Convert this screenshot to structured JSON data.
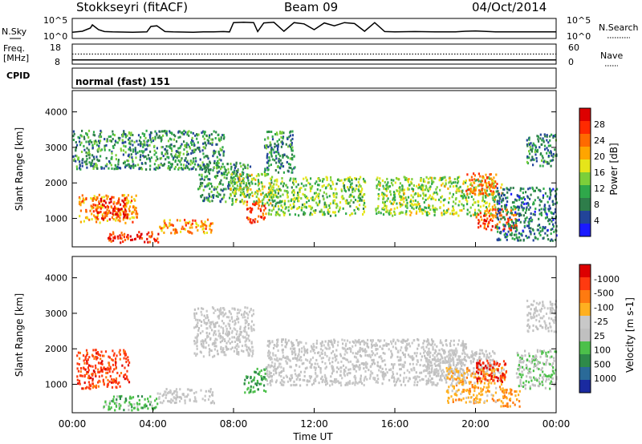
{
  "header": {
    "station": "Stokkseyri (fitACF)",
    "beam": "Beam 09",
    "date": "04/Oct/2014"
  },
  "noise_panel": {
    "left_label": "N.Sky",
    "right_label": "N.Search",
    "left_ticks": [
      "10^5",
      "10^0"
    ],
    "right_ticks": [
      "10^5",
      "10^0"
    ]
  },
  "freq_panel": {
    "left_label_line1": "Freq.",
    "left_label_line2": "[MHz]",
    "left_ticks": [
      "18",
      "8"
    ],
    "right_label": "Nave",
    "right_ticks": [
      "60",
      "0"
    ]
  },
  "cpid": {
    "label": "CPID",
    "value": "normal (fast) 151"
  },
  "x_axis": {
    "label": "Time UT",
    "ticks": [
      "00:00",
      "04:00",
      "08:00",
      "12:00",
      "16:00",
      "20:00",
      "00:00"
    ]
  },
  "colors": {
    "power_scale": [
      "#1a1aff",
      "#224499",
      "#2e7d4a",
      "#2fa84a",
      "#7ccf3a",
      "#e5e51a",
      "#ffa500",
      "#ff6a00",
      "#ff2a00",
      "#dd0000"
    ],
    "velocity_scale": [
      "#1a2aa0",
      "#2a6a98",
      "#2e8a4a",
      "#4cc04a",
      "#c0c0c0",
      "#c8c8c8",
      "#ffb020",
      "#ff7a10",
      "#ff3a10",
      "#dd0000"
    ]
  },
  "chart_data": [
    {
      "type": "line",
      "panel": "noise",
      "series": [
        {
          "name": "N.Sky",
          "x_hours": [
            0,
            0.5,
            0.9,
            1.0,
            1.3,
            1.6,
            2.0,
            3.0,
            3.7,
            3.9,
            4.2,
            4.6,
            5.0,
            6.0,
            6.5,
            7.0,
            7.5,
            7.8,
            8.0,
            8.5,
            9.0,
            9.2,
            9.5,
            10.0,
            10.5,
            11.0,
            11.5,
            12.0,
            12.5,
            13.0,
            13.5,
            14.0,
            14.5,
            15.0,
            15.5,
            16.0,
            17.0,
            18.0,
            19.0,
            19.5,
            20.0,
            21.0,
            21.5,
            22.0,
            23.0,
            24.0
          ],
          "values": [
            1.2,
            1.5,
            2.5,
            3.5,
            2.0,
            1.4,
            1.3,
            1.2,
            1.3,
            3.0,
            3.2,
            1.4,
            1.3,
            1.2,
            1.3,
            1.3,
            1.4,
            1.3,
            4.2,
            4.3,
            4.2,
            1.4,
            4.1,
            4.3,
            1.5,
            4.2,
            3.8,
            2.0,
            4.1,
            3.2,
            4.2,
            3.9,
            1.5,
            4.2,
            1.4,
            1.3,
            1.4,
            1.3,
            1.3,
            1.5,
            1.6,
            1.3,
            1.3,
            1.3,
            1.3,
            1.3
          ]
        }
      ]
    },
    {
      "type": "line",
      "panel": "frequency",
      "series": [
        {
          "name": "Freq",
          "x_hours": [
            0,
            24
          ],
          "values": [
            10,
            10
          ]
        },
        {
          "name": "Nave",
          "x_hours": [
            0,
            24
          ],
          "values": [
            33,
            33
          ]
        }
      ]
    },
    {
      "type": "heatmap",
      "panel": "power",
      "ylabel": "Slant Range [km]",
      "xlabel": "Time UT",
      "x_range": [
        0,
        24
      ],
      "ylim": [
        200,
        4600
      ],
      "yticks": [
        1000,
        2000,
        3000,
        4000
      ],
      "colorbar": {
        "label": "Power [dB]",
        "ticks": [
          4,
          8,
          12,
          16,
          20,
          24,
          28
        ],
        "range": [
          0,
          30
        ]
      },
      "patches": [
        {
          "t0": 0.3,
          "t1": 3.2,
          "r0": 900,
          "r1": 1700,
          "v": 20
        },
        {
          "t0": 1.0,
          "t1": 2.7,
          "r0": 1000,
          "r1": 1600,
          "v": 27
        },
        {
          "t0": 1.7,
          "t1": 4.3,
          "r0": 350,
          "r1": 650,
          "v": 26
        },
        {
          "t0": 4.3,
          "t1": 7.0,
          "r0": 600,
          "r1": 1000,
          "v": 21
        },
        {
          "t0": 0.0,
          "t1": 7.5,
          "r0": 2400,
          "r1": 3500,
          "v": 9
        },
        {
          "t0": 6.2,
          "t1": 8.8,
          "r0": 1500,
          "r1": 2600,
          "v": 9
        },
        {
          "t0": 7.8,
          "t1": 9.8,
          "r0": 1400,
          "r1": 2300,
          "v": 15
        },
        {
          "t0": 8.6,
          "t1": 9.6,
          "r0": 900,
          "r1": 1500,
          "v": 25
        },
        {
          "t0": 9.7,
          "t1": 14.5,
          "r0": 1100,
          "r1": 2200,
          "v": 13
        },
        {
          "t0": 15.0,
          "t1": 21.0,
          "r0": 1100,
          "r1": 2200,
          "v": 14
        },
        {
          "t0": 19.5,
          "t1": 21.3,
          "r0": 1700,
          "r1": 2300,
          "v": 22
        },
        {
          "t0": 20.0,
          "t1": 22.0,
          "r0": 700,
          "r1": 1300,
          "v": 23
        },
        {
          "t0": 21.0,
          "t1": 24.0,
          "r0": 400,
          "r1": 1900,
          "v": 7
        },
        {
          "t0": 22.5,
          "t1": 24.0,
          "r0": 2500,
          "r1": 3400,
          "v": 8
        },
        {
          "t0": 9.5,
          "t1": 11.0,
          "r0": 2300,
          "r1": 3500,
          "v": 8
        }
      ]
    },
    {
      "type": "heatmap",
      "panel": "velocity",
      "ylabel": "Slant Range [km]",
      "xlabel": "Time UT",
      "x_range": [
        0,
        24
      ],
      "ylim": [
        200,
        4600
      ],
      "yticks": [
        1000,
        2000,
        3000,
        4000
      ],
      "colorbar": {
        "label": "Velocity [m s-1]",
        "ticks": [
          1000,
          500,
          100,
          25,
          -25,
          -100,
          -500,
          -1000
        ],
        "range": [
          -1000,
          1000
        ]
      },
      "patches": [
        {
          "t0": 0.2,
          "t1": 2.8,
          "r0": 900,
          "r1": 2000,
          "v": -700
        },
        {
          "t0": 1.5,
          "t1": 4.2,
          "r0": 300,
          "r1": 700,
          "v": 300
        },
        {
          "t0": 4.2,
          "t1": 7.0,
          "r0": 500,
          "r1": 900,
          "v": 10
        },
        {
          "t0": 6.0,
          "t1": 9.0,
          "r0": 1800,
          "r1": 3200,
          "v": 0
        },
        {
          "t0": 8.5,
          "t1": 9.6,
          "r0": 800,
          "r1": 1500,
          "v": 400
        },
        {
          "t0": 9.6,
          "t1": 19.5,
          "r0": 1000,
          "r1": 2300,
          "v": 0
        },
        {
          "t0": 17.5,
          "t1": 21.0,
          "r0": 1300,
          "r1": 2000,
          "v": 0
        },
        {
          "t0": 18.5,
          "t1": 21.5,
          "r0": 500,
          "r1": 1500,
          "v": -300
        },
        {
          "t0": 20.0,
          "t1": 21.5,
          "r0": 1100,
          "r1": 1700,
          "v": -800
        },
        {
          "t0": 21.2,
          "t1": 22.2,
          "r0": 400,
          "r1": 900,
          "v": -400
        },
        {
          "t0": 22.0,
          "t1": 24.0,
          "r0": 900,
          "r1": 2000,
          "v": 200
        },
        {
          "t0": 22.5,
          "t1": 24.0,
          "r0": 2500,
          "r1": 3400,
          "v": 0
        }
      ]
    }
  ]
}
